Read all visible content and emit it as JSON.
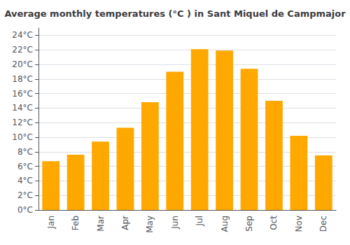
{
  "chart_data": {
    "type": "bar",
    "title": "Average monthly temperatures (°C ) in Sant Miquel de Campmajor",
    "categories": [
      "Jan",
      "Feb",
      "Mar",
      "Apr",
      "May",
      "Jun",
      "Jul",
      "Aug",
      "Sep",
      "Oct",
      "Nov",
      "Dec"
    ],
    "values": [
      6.7,
      7.6,
      9.4,
      11.3,
      14.8,
      19.0,
      22.1,
      21.9,
      19.4,
      15.0,
      10.2,
      7.5
    ],
    "color": "#FFA800",
    "ylim": [
      0,
      25
    ],
    "yticks": [
      {
        "value": 0,
        "label": "0°C"
      },
      {
        "value": 2,
        "label": "2°C"
      },
      {
        "value": 4,
        "label": "4°C"
      },
      {
        "value": 6,
        "label": "6°C"
      },
      {
        "value": 8,
        "label": "8°C"
      },
      {
        "value": 10,
        "label": "10°C"
      },
      {
        "value": 12,
        "label": "12°C"
      },
      {
        "value": 14,
        "label": "14°C"
      },
      {
        "value": 16,
        "label": "16°C"
      },
      {
        "value": 18,
        "label": "18°C"
      },
      {
        "value": 20,
        "label": "20°C"
      },
      {
        "value": 22,
        "label": "22°C"
      },
      {
        "value": 24,
        "label": "24°C"
      }
    ],
    "grid": true
  }
}
